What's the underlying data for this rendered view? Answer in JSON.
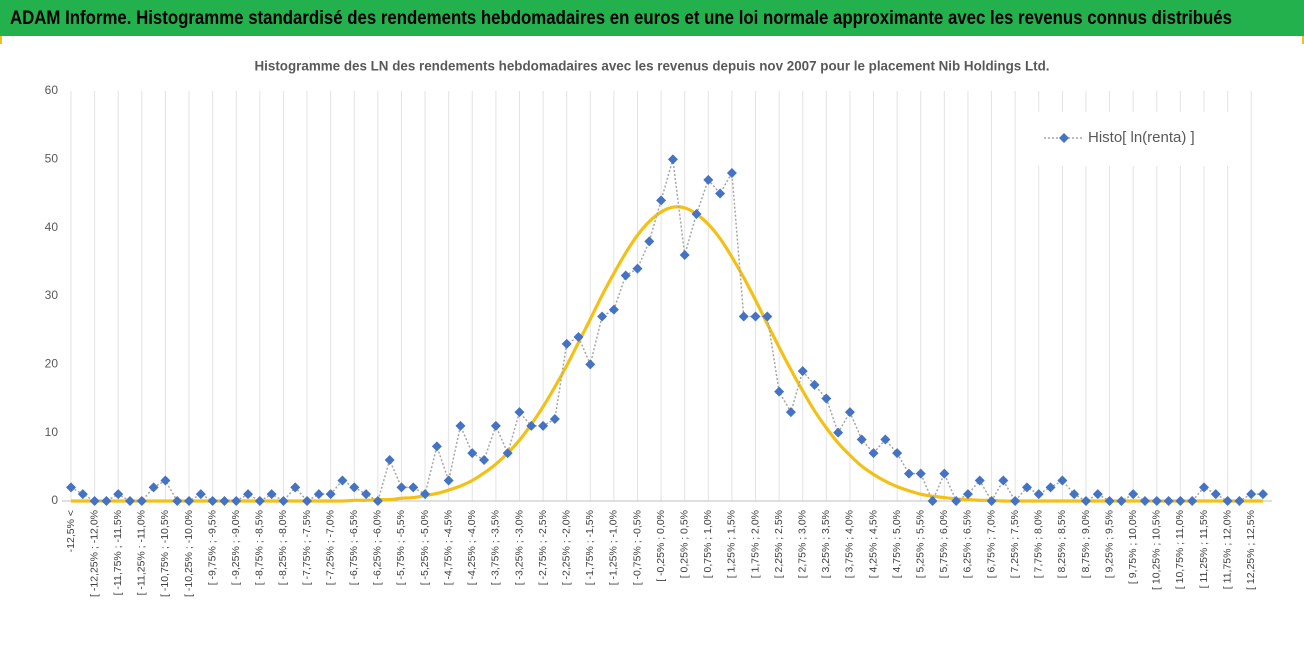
{
  "header": {
    "title": "ADAM Informe. Histogramme standardisé des rendements hebdomadaires en euros et une loi normale approximante avec les revenus connus distribués"
  },
  "chart_data": {
    "type": "line",
    "title": "Histogramme des LN des rendements hebdomadaires avec les revenus depuis nov 2007 pour le placement Nib Holdings Ltd.",
    "categories": [
      "-12,5% <",
      null,
      "[ -12,25% ; -12,0%",
      null,
      "[ -11,75% ; -11,5%",
      null,
      "[ -11,25% ; -11,0%",
      null,
      "[ -10,75% ; -10,5%",
      null,
      "[ -10,25% ; -10,0%",
      null,
      "[ -9,75% ; -9,5%",
      null,
      "[ -9,25% ; -9,0%",
      null,
      "[ -8,75% ; -8,5%",
      null,
      "[ -8,25% ; -8,0%",
      null,
      "[ -7,75% ; -7,5%",
      null,
      "[ -7,25% ; -7,0%",
      null,
      "[ -6,75% ; -6,5%",
      null,
      "[ -6,25% ; -6,0%",
      null,
      "[ -5,75% ; -5,5%",
      null,
      "[ -5,25% ; -5,0%",
      null,
      "[ -4,75% ; -4,5%",
      null,
      "[ -4,25% ; -4,0%",
      null,
      "[ -3,75% ; -3,5%",
      null,
      "[ -3,25% ; -3,0%",
      null,
      "[ -2,75% ; -2,5%",
      null,
      "[ -2,25% ; -2,0%",
      null,
      "[ -1,75% ; -1,5%",
      null,
      "[ -1,25% ; -1,0%",
      null,
      "[ -0,75% ; -0,5%",
      null,
      "[ -0,25% ; 0,0%",
      null,
      "[ 0,25% ; 0,5%",
      null,
      "[ 0,75% ; 1,0%",
      null,
      "[ 1,25% ; 1,5%",
      null,
      "[ 1,75% ; 2,0%",
      null,
      "[ 2,25% ; 2,5%",
      null,
      "[ 2,75% ; 3,0%",
      null,
      "[ 3,25% ; 3,5%",
      null,
      "[ 3,75% ; 4,0%",
      null,
      "[ 4,25% ; 4,5%",
      null,
      "[ 4,75% ; 5,0%",
      null,
      "[ 5,25% ; 5,5%",
      null,
      "[ 5,75% ; 6,0%",
      null,
      "[ 6,25% ; 6,5%",
      null,
      "[ 6,75% ; 7,0%",
      null,
      "[ 7,25% ; 7,5%",
      null,
      "[ 7,75% ; 8,0%",
      null,
      "[ 8,25% ; 8,5%",
      null,
      "[ 8,75% ; 9,0%",
      null,
      "[ 9,25% ; 9,5%",
      null,
      "[ 9,75% ; 10,0%",
      null,
      "[ 10,25% ; 10,5%",
      null,
      "[ 10,75% ; 11,0%",
      null,
      "[ 11,25% ; 11,5%",
      null,
      "[ 11,75% ; 12,0%",
      null,
      "[ 12,25% ; 12,5%",
      null
    ],
    "series": [
      {
        "name": "Histo[ ln(renta) ]",
        "color": "#4472c4",
        "line_color": "#a6a6a6",
        "marker": "diamond",
        "values": [
          2,
          1,
          0,
          0,
          1,
          0,
          0,
          2,
          3,
          0,
          0,
          1,
          0,
          0,
          0,
          1,
          0,
          1,
          0,
          2,
          0,
          1,
          1,
          3,
          2,
          1,
          0,
          6,
          2,
          2,
          1,
          8,
          3,
          11,
          7,
          6,
          11,
          7,
          13,
          11,
          11,
          12,
          23,
          24,
          20,
          27,
          28,
          33,
          34,
          38,
          44,
          50,
          36,
          42,
          47,
          45,
          48,
          27,
          27,
          27,
          16,
          13,
          19,
          17,
          15,
          10,
          13,
          9,
          7,
          9,
          7,
          4,
          4,
          0,
          4,
          0,
          1,
          3,
          0,
          3,
          0,
          2,
          1,
          2,
          3,
          1,
          0,
          1,
          0,
          0,
          1,
          0,
          0,
          0,
          0,
          0,
          2,
          1,
          0,
          0,
          1,
          1
        ]
      },
      {
        "color": "#f5c016",
        "smooth": true,
        "values": [
          0,
          0,
          0,
          0,
          0,
          0,
          0,
          0,
          0,
          0,
          0,
          0,
          0,
          0,
          0,
          0,
          0,
          0,
          0,
          0,
          0,
          0,
          0,
          0,
          0.1,
          0.1,
          0.2,
          0.2,
          0.4,
          0.5,
          0.8,
          1.1,
          1.6,
          2.2,
          3.0,
          4.1,
          5.4,
          7.0,
          8.9,
          11.2,
          13.8,
          16.7,
          19.8,
          23.2,
          26.6,
          30.1,
          33.3,
          36.3,
          38.9,
          40.9,
          42.3,
          43.0,
          42.9,
          42.0,
          40.5,
          38.4,
          35.7,
          32.7,
          29.4,
          25.9,
          22.5,
          19.2,
          16.1,
          13.2,
          10.7,
          8.5,
          6.7,
          5.1,
          3.9,
          2.9,
          2.1,
          1.5,
          1.0,
          0.7,
          0.5,
          0.3,
          0.2,
          0.1,
          0.1,
          0,
          0,
          0,
          0,
          0,
          0,
          0,
          0,
          0,
          0,
          0,
          0,
          0,
          0,
          0,
          0,
          0,
          0,
          0,
          0,
          0,
          0,
          0
        ]
      }
    ],
    "ylim": [
      0,
      60
    ],
    "yticks": [
      0,
      10,
      20,
      30,
      40,
      50,
      60
    ],
    "grid": "x",
    "legend": "upper right"
  }
}
